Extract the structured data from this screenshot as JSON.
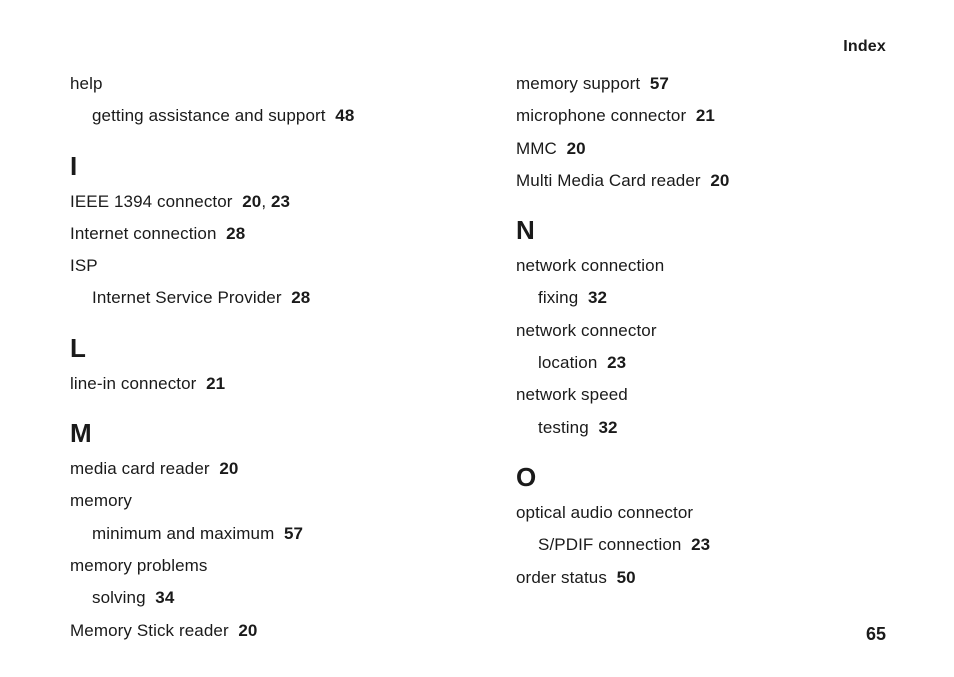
{
  "header": {
    "title": "Index"
  },
  "footer": {
    "page_number": "65"
  },
  "columns": {
    "left": [
      {
        "type": "entry",
        "text": "help"
      },
      {
        "type": "subentry",
        "text": "getting assistance and support",
        "pages": [
          "48"
        ]
      },
      {
        "type": "heading",
        "text": "I"
      },
      {
        "type": "entry",
        "text": "IEEE 1394 connector",
        "pages": [
          "20",
          "23"
        ]
      },
      {
        "type": "entry",
        "text": "Internet connection",
        "pages": [
          "28"
        ]
      },
      {
        "type": "entry",
        "text": "ISP"
      },
      {
        "type": "subentry",
        "text": "Internet Service Provider",
        "pages": [
          "28"
        ]
      },
      {
        "type": "heading",
        "text": "L"
      },
      {
        "type": "entry",
        "text": "line-in connector",
        "pages": [
          "21"
        ]
      },
      {
        "type": "heading",
        "text": "M"
      },
      {
        "type": "entry",
        "text": "media card reader",
        "pages": [
          "20"
        ]
      },
      {
        "type": "entry",
        "text": "memory"
      },
      {
        "type": "subentry",
        "text": "minimum and maximum",
        "pages": [
          "57"
        ]
      },
      {
        "type": "entry",
        "text": "memory problems"
      },
      {
        "type": "subentry",
        "text": "solving",
        "pages": [
          "34"
        ]
      },
      {
        "type": "entry",
        "text": "Memory Stick reader",
        "pages": [
          "20"
        ]
      }
    ],
    "right": [
      {
        "type": "entry",
        "text": "memory support",
        "pages": [
          "57"
        ]
      },
      {
        "type": "entry",
        "text": "microphone connector",
        "pages": [
          "21"
        ]
      },
      {
        "type": "entry",
        "text": "MMC",
        "pages": [
          "20"
        ]
      },
      {
        "type": "entry",
        "text": "Multi Media Card reader",
        "pages": [
          "20"
        ]
      },
      {
        "type": "heading",
        "text": "N"
      },
      {
        "type": "entry",
        "text": "network connection"
      },
      {
        "type": "subentry",
        "text": "fixing",
        "pages": [
          "32"
        ]
      },
      {
        "type": "entry",
        "text": "network connector"
      },
      {
        "type": "subentry",
        "text": "location",
        "pages": [
          "23"
        ]
      },
      {
        "type": "entry",
        "text": "network speed"
      },
      {
        "type": "subentry",
        "text": "testing",
        "pages": [
          "32"
        ]
      },
      {
        "type": "heading",
        "text": "O"
      },
      {
        "type": "entry",
        "text": "optical audio connector"
      },
      {
        "type": "subentry",
        "text": "S/PDIF connection",
        "pages": [
          "23"
        ]
      },
      {
        "type": "entry",
        "text": "order status",
        "pages": [
          "50"
        ]
      }
    ]
  }
}
